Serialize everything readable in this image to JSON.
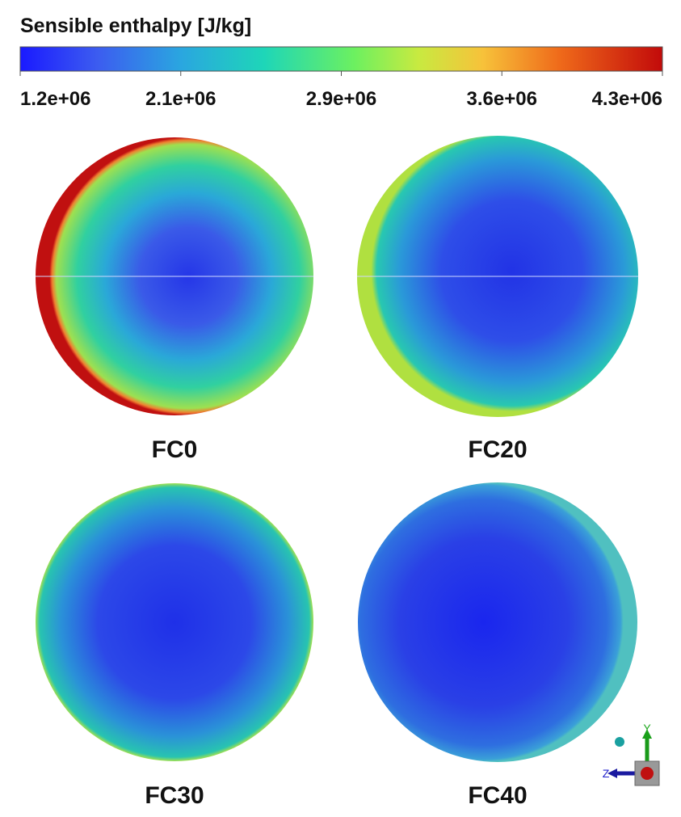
{
  "colorbar": {
    "title": "Sensible enthalpy [J/kg]",
    "ticks": [
      "1.2e+06",
      "2.1e+06",
      "2.9e+06",
      "3.6e+06",
      "4.3e+06"
    ]
  },
  "panels": [
    {
      "label": "FC0"
    },
    {
      "label": "FC20"
    },
    {
      "label": "FC30"
    },
    {
      "label": "FC40"
    }
  ],
  "triad": {
    "y_label": "Y",
    "z_label": "Z"
  }
}
